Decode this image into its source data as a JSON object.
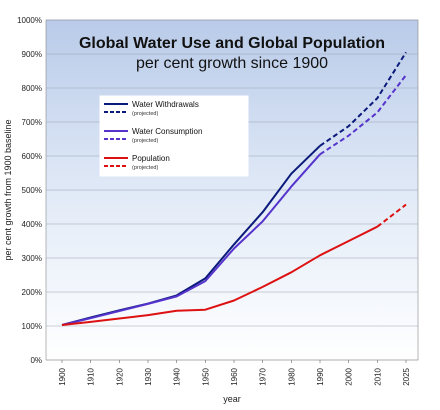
{
  "chart_data": {
    "type": "line",
    "title": "Global Water Use and Global Population",
    "subtitle": "per cent growth since 1900",
    "xlabel": "year",
    "ylabel": "per cent growth from 1900 baseline",
    "x_ticks": [
      "1900",
      "1910",
      "1920",
      "1930",
      "1940",
      "1950",
      "1960",
      "1970",
      "1980",
      "1990",
      "2000",
      "2010",
      "2025"
    ],
    "y_ticks": [
      "0%",
      "100%",
      "200%",
      "300%",
      "400%",
      "500%",
      "600%",
      "700%",
      "800%",
      "900%",
      "1000%"
    ],
    "ylim": [
      0,
      1000
    ],
    "legend_placement": "upper-left",
    "projected_label": "(projected)",
    "series": [
      {
        "name": "Water Withdrawals",
        "color": "#0a1a7a",
        "values": [
          [
            1900,
            103
          ],
          [
            1910,
            125
          ],
          [
            1920,
            146
          ],
          [
            1930,
            166
          ],
          [
            1940,
            190
          ],
          [
            1950,
            240
          ],
          [
            1960,
            340
          ],
          [
            1970,
            435
          ],
          [
            1980,
            548
          ],
          [
            1990,
            630
          ]
        ],
        "projected": [
          [
            1990,
            630
          ],
          [
            2000,
            688
          ],
          [
            2010,
            770
          ],
          [
            2025,
            905
          ]
        ]
      },
      {
        "name": "Water Consumption",
        "color": "#5533cc",
        "values": [
          [
            1900,
            103
          ],
          [
            1910,
            123
          ],
          [
            1920,
            144
          ],
          [
            1930,
            165
          ],
          [
            1940,
            187
          ],
          [
            1950,
            232
          ],
          [
            1960,
            328
          ],
          [
            1970,
            408
          ],
          [
            1980,
            510
          ],
          [
            1990,
            605
          ]
        ],
        "projected": [
          [
            1990,
            605
          ],
          [
            2000,
            660
          ],
          [
            2010,
            728
          ],
          [
            2025,
            838
          ]
        ]
      },
      {
        "name": "Population",
        "color": "#dd1111",
        "values": [
          [
            1900,
            103
          ],
          [
            1910,
            112
          ],
          [
            1920,
            122
          ],
          [
            1930,
            132
          ],
          [
            1940,
            145
          ],
          [
            1950,
            148
          ],
          [
            1960,
            175
          ],
          [
            1970,
            215
          ],
          [
            1980,
            258
          ],
          [
            1990,
            308
          ],
          [
            2000,
            350
          ],
          [
            2010,
            392
          ]
        ],
        "projected": [
          [
            2010,
            392
          ],
          [
            2025,
            457
          ]
        ]
      }
    ]
  }
}
